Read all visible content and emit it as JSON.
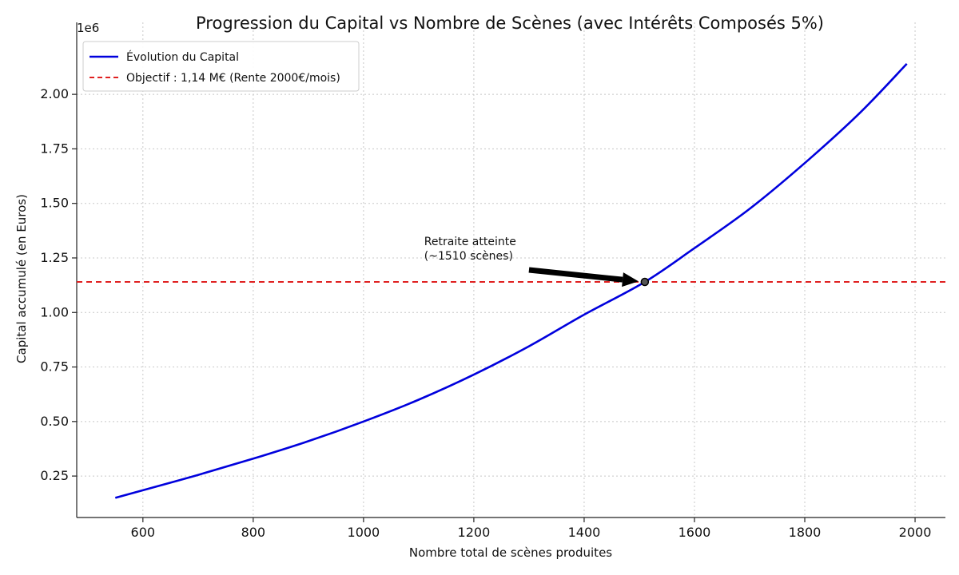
{
  "chart_data": {
    "type": "line",
    "title": "Progression du Capital vs Nombre de Scènes (avec Intérêts Composés 5%)",
    "xlabel": "Nombre total de scènes produites",
    "ylabel": "Capital accumulé (en Euros)",
    "y_exponent_label": "1e6",
    "xlim": [
      480,
      2055
    ],
    "ylim": [
      0.06,
      2.33
    ],
    "y_scale_multiplier": 1000000,
    "x_ticks": [
      600,
      800,
      1000,
      1200,
      1400,
      1600,
      1800,
      2000
    ],
    "x_tick_labels": [
      "600",
      "800",
      "1000",
      "1200",
      "1400",
      "1600",
      "1800",
      "2000"
    ],
    "y_ticks": [
      0.25,
      0.5,
      0.75,
      1.0,
      1.25,
      1.5,
      1.75,
      2.0
    ],
    "y_tick_labels": [
      "0.25",
      "0.50",
      "0.75",
      "1.00",
      "1.25",
      "1.50",
      "1.75",
      "2.00"
    ],
    "grid": true,
    "legend_position": "top-left",
    "series": [
      {
        "name": "Évolution du Capital",
        "color": "#0000dd",
        "style": "solid",
        "x": [
          550,
          600,
          700,
          800,
          900,
          1000,
          1100,
          1200,
          1300,
          1400,
          1510,
          1600,
          1700,
          1800,
          1900,
          1985
        ],
        "y": [
          0.15,
          0.185,
          0.255,
          0.33,
          0.41,
          0.5,
          0.6,
          0.715,
          0.845,
          0.99,
          1.14,
          1.295,
          1.475,
          1.685,
          1.915,
          2.14
        ]
      },
      {
        "name": "Objectif : 1,14 M€ (Rente 2000€/mois)",
        "color": "#e02020",
        "style": "dashed",
        "type": "hline",
        "y": 1.14
      }
    ],
    "annotation": {
      "text_lines": [
        "Retraite atteinte",
        "(~1510 scènes)"
      ],
      "point": {
        "x": 1510,
        "y": 1.14
      },
      "text_anchor": {
        "x": 1110,
        "y": 1.29
      },
      "arrow_start": {
        "x": 1300,
        "y": 1.195
      }
    }
  }
}
